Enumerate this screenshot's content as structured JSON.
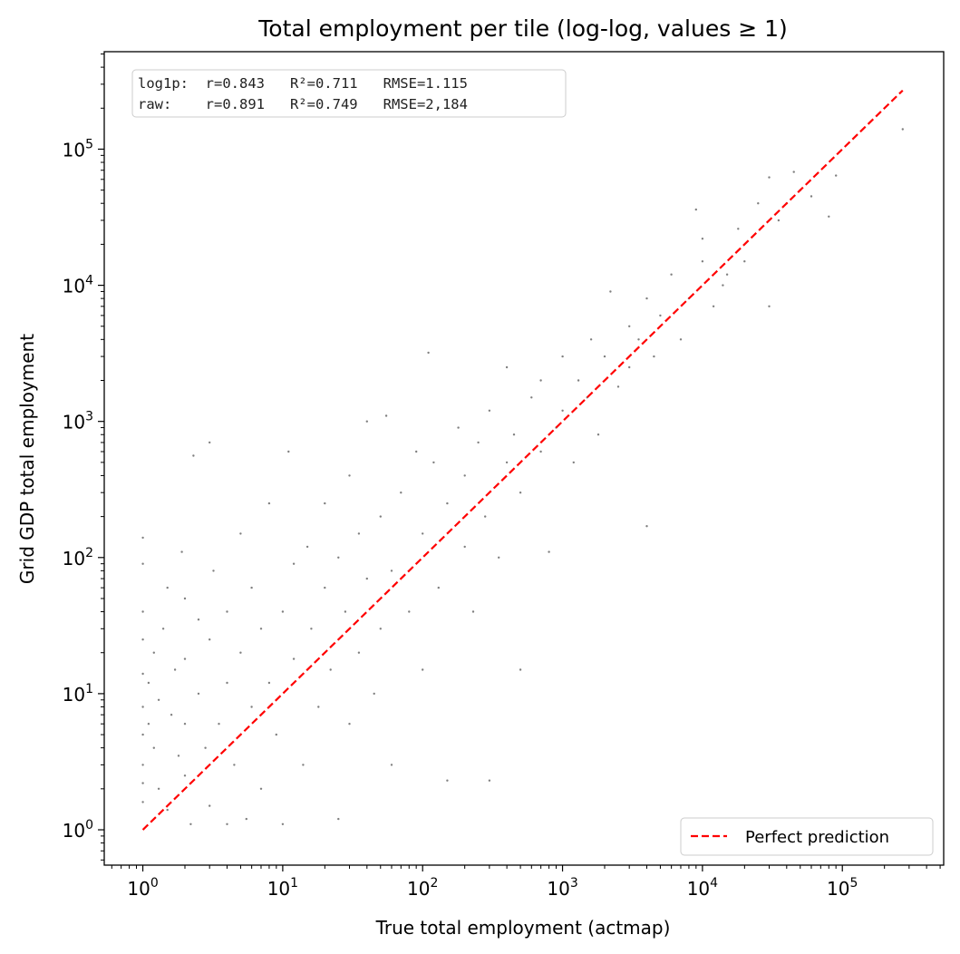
{
  "chart_data": {
    "type": "scatter",
    "title": "Total employment per tile (log-log, values ≥ 1)",
    "xlabel": "True total employment (actmap)",
    "ylabel": "Grid GDP total employment",
    "xscale": "log",
    "yscale": "log",
    "xlim": [
      0.53,
      530000
    ],
    "ylim": [
      0.55,
      520000
    ],
    "x_ticks": [
      1,
      10,
      100,
      1000,
      10000,
      100000
    ],
    "y_ticks": [
      1,
      10,
      100,
      1000,
      10000,
      100000
    ],
    "tick_labels": [
      {
        "base": "10",
        "exp": "0"
      },
      {
        "base": "10",
        "exp": "1"
      },
      {
        "base": "10",
        "exp": "2"
      },
      {
        "base": "10",
        "exp": "3"
      },
      {
        "base": "10",
        "exp": "4"
      },
      {
        "base": "10",
        "exp": "5"
      }
    ],
    "stats_lines": [
      "log1p:  r=0.843   R²=0.711   RMSE=1.115",
      "raw:    r=0.891   R²=0.749   RMSE=2,184"
    ],
    "legend": {
      "position": "lower-right",
      "entries": [
        {
          "label": "Perfect prediction",
          "color": "#ff0000",
          "style": "dashed"
        }
      ]
    },
    "reference_line": {
      "x": [
        1,
        270000
      ],
      "y": [
        1,
        270000
      ],
      "color": "#ff0000"
    },
    "series": [
      {
        "marker_color": "#000000",
        "points": [
          [
            1,
            1.6
          ],
          [
            1,
            3
          ],
          [
            1,
            5
          ],
          [
            1,
            8
          ],
          [
            1,
            14
          ],
          [
            1,
            25
          ],
          [
            1,
            40
          ],
          [
            1,
            90
          ],
          [
            1,
            140
          ],
          [
            1,
            2.2
          ],
          [
            1.1,
            6
          ],
          [
            1.1,
            12
          ],
          [
            1.2,
            4
          ],
          [
            1.2,
            20
          ],
          [
            1.3,
            2
          ],
          [
            1.3,
            9
          ],
          [
            1.4,
            30
          ],
          [
            1.5,
            1.4
          ],
          [
            1.5,
            60
          ],
          [
            1.6,
            7
          ],
          [
            1.7,
            15
          ],
          [
            1.8,
            3.5
          ],
          [
            1.9,
            110
          ],
          [
            2,
            2.5
          ],
          [
            2,
            6
          ],
          [
            2,
            18
          ],
          [
            2,
            50
          ],
          [
            2.2,
            1.1
          ],
          [
            2.3,
            560
          ],
          [
            2.5,
            10
          ],
          [
            2.5,
            35
          ],
          [
            2.8,
            4
          ],
          [
            3,
            1.5
          ],
          [
            3,
            700
          ],
          [
            3,
            25
          ],
          [
            3.2,
            80
          ],
          [
            3.5,
            6
          ],
          [
            4,
            1.1
          ],
          [
            4,
            12
          ],
          [
            4,
            40
          ],
          [
            4.5,
            3
          ],
          [
            5,
            150
          ],
          [
            5,
            20
          ],
          [
            5.5,
            1.2
          ],
          [
            6,
            8
          ],
          [
            6,
            60
          ],
          [
            7,
            30
          ],
          [
            7,
            2
          ],
          [
            8,
            250
          ],
          [
            8,
            12
          ],
          [
            9,
            5
          ],
          [
            10,
            40
          ],
          [
            10,
            1.1
          ],
          [
            11,
            600
          ],
          [
            12,
            90
          ],
          [
            12,
            18
          ],
          [
            14,
            3
          ],
          [
            15,
            120
          ],
          [
            16,
            30
          ],
          [
            18,
            8
          ],
          [
            20,
            60
          ],
          [
            20,
            250
          ],
          [
            22,
            15
          ],
          [
            25,
            1.2
          ],
          [
            25,
            100
          ],
          [
            28,
            40
          ],
          [
            30,
            6
          ],
          [
            30,
            400
          ],
          [
            35,
            150
          ],
          [
            35,
            20
          ],
          [
            40,
            1000
          ],
          [
            40,
            70
          ],
          [
            45,
            10
          ],
          [
            50,
            200
          ],
          [
            50,
            30
          ],
          [
            55,
            1100
          ],
          [
            60,
            80
          ],
          [
            60,
            3
          ],
          [
            70,
            300
          ],
          [
            80,
            40
          ],
          [
            90,
            600
          ],
          [
            100,
            150
          ],
          [
            100,
            15
          ],
          [
            110,
            3200
          ],
          [
            120,
            500
          ],
          [
            130,
            60
          ],
          [
            150,
            250
          ],
          [
            150,
            2.3
          ],
          [
            180,
            900
          ],
          [
            200,
            120
          ],
          [
            200,
            400
          ],
          [
            230,
            40
          ],
          [
            250,
            700
          ],
          [
            280,
            200
          ],
          [
            300,
            1200
          ],
          [
            300,
            2.3
          ],
          [
            350,
            100
          ],
          [
            400,
            2500
          ],
          [
            400,
            500
          ],
          [
            450,
            800
          ],
          [
            500,
            300
          ],
          [
            500,
            15
          ],
          [
            600,
            1500
          ],
          [
            700,
            600
          ],
          [
            700,
            2000
          ],
          [
            800,
            110
          ],
          [
            900,
            900
          ],
          [
            1000,
            1200
          ],
          [
            1000,
            3000
          ],
          [
            1200,
            500
          ],
          [
            1300,
            2000
          ],
          [
            1500,
            1500
          ],
          [
            1600,
            4000
          ],
          [
            1800,
            800
          ],
          [
            2000,
            3000
          ],
          [
            2200,
            9000
          ],
          [
            2500,
            1800
          ],
          [
            3000,
            5000
          ],
          [
            3000,
            2500
          ],
          [
            3500,
            4000
          ],
          [
            4000,
            170
          ],
          [
            4000,
            8000
          ],
          [
            4500,
            3000
          ],
          [
            5000,
            6000
          ],
          [
            6000,
            12000
          ],
          [
            7000,
            4000
          ],
          [
            8000,
            8000
          ],
          [
            9000,
            36000
          ],
          [
            10000,
            15000
          ],
          [
            10000,
            22000
          ],
          [
            12000,
            7000
          ],
          [
            14000,
            10000
          ],
          [
            15000,
            12000
          ],
          [
            18000,
            26000
          ],
          [
            20000,
            15000
          ],
          [
            25000,
            40000
          ],
          [
            30000,
            7000
          ],
          [
            30000,
            62000
          ],
          [
            35000,
            30000
          ],
          [
            40000,
            40000
          ],
          [
            45000,
            68000
          ],
          [
            50000,
            50000
          ],
          [
            60000,
            45000
          ],
          [
            80000,
            32000
          ],
          [
            90000,
            64000
          ],
          [
            270000,
            140000
          ]
        ]
      }
    ]
  }
}
